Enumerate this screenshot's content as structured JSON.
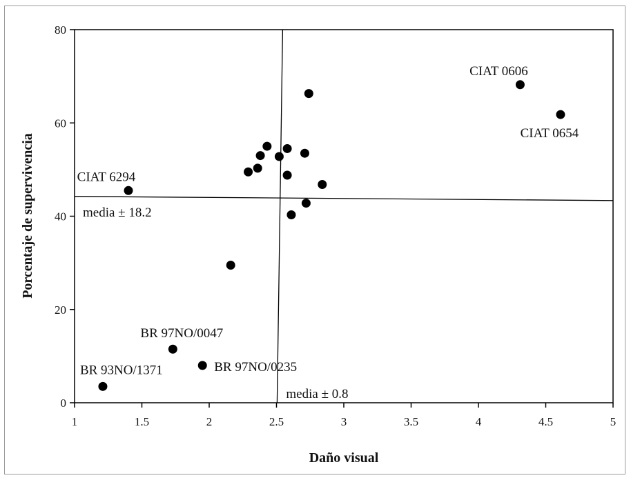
{
  "chart_data": {
    "type": "scatter",
    "title": "",
    "xlabel": "Daño visual",
    "ylabel": "Porcentaje de supervivencia",
    "xlim": [
      1,
      5
    ],
    "ylim": [
      0,
      80
    ],
    "xticks": [
      "1",
      "1.5",
      "2",
      "2.5",
      "3",
      "3.5",
      "4",
      "4.5",
      "5"
    ],
    "yticks": [
      "0",
      "20",
      "40",
      "60",
      "80"
    ],
    "xtick_values": [
      1,
      1.5,
      2,
      2.5,
      3,
      3.5,
      4,
      4.5,
      5
    ],
    "ytick_values": [
      0,
      20,
      40,
      60,
      80
    ],
    "grid": false,
    "marker_color": "#000000",
    "points": [
      {
        "x": 1.21,
        "y": 3.5
      },
      {
        "x": 1.73,
        "y": 11.5
      },
      {
        "x": 1.95,
        "y": 8
      },
      {
        "x": 1.4,
        "y": 45.5
      },
      {
        "x": 2.16,
        "y": 29.5
      },
      {
        "x": 2.29,
        "y": 49.5
      },
      {
        "x": 2.36,
        "y": 50.3
      },
      {
        "x": 2.38,
        "y": 53
      },
      {
        "x": 2.43,
        "y": 55
      },
      {
        "x": 2.52,
        "y": 52.8
      },
      {
        "x": 2.58,
        "y": 54.5
      },
      {
        "x": 2.58,
        "y": 48.8
      },
      {
        "x": 2.61,
        "y": 40.3
      },
      {
        "x": 2.71,
        "y": 53.5
      },
      {
        "x": 2.72,
        "y": 42.8
      },
      {
        "x": 2.74,
        "y": 66.3
      },
      {
        "x": 2.84,
        "y": 46.8
      },
      {
        "x": 4.31,
        "y": 68.2
      },
      {
        "x": 4.61,
        "y": 61.8
      }
    ],
    "reference_lines": [
      {
        "orientation": "vertical",
        "value": 2.52,
        "label": "media ± 0.8"
      },
      {
        "orientation": "horizontal",
        "value": 43.8,
        "label": "media ± 18.2"
      }
    ],
    "annotations": [
      {
        "text": "CIAT 0606",
        "x": 4.31,
        "y": 68.2
      },
      {
        "text": "CIAT 0654",
        "x": 4.61,
        "y": 61.8
      },
      {
        "text": "CIAT 6294",
        "x": 1.4,
        "y": 45.5
      },
      {
        "text": "BR 97NO/0047",
        "x": 1.73,
        "y": 11.5
      },
      {
        "text": "BR 97NO/0235",
        "x": 1.95,
        "y": 8
      },
      {
        "text": "BR 93NO/1371",
        "x": 1.21,
        "y": 3.5
      }
    ]
  }
}
